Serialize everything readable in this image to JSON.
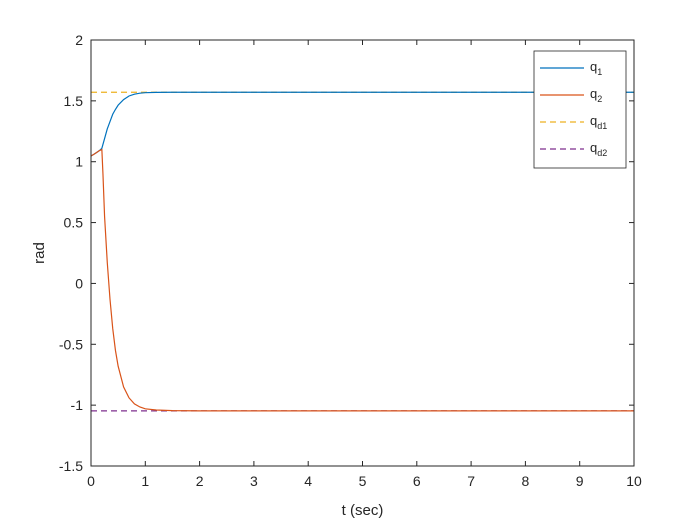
{
  "chart_data": {
    "type": "line",
    "title": "",
    "xlabel": "t (sec)",
    "ylabel": "rad",
    "xlim": [
      0,
      10
    ],
    "ylim": [
      -1.5,
      2
    ],
    "xticks": [
      0,
      1,
      2,
      3,
      4,
      5,
      6,
      7,
      8,
      9,
      10
    ],
    "yticks": [
      -1.5,
      -1,
      -0.5,
      0,
      0.5,
      1,
      1.5,
      2
    ],
    "xtick_labels": [
      "0",
      "1",
      "2",
      "3",
      "4",
      "5",
      "6",
      "7",
      "8",
      "9",
      "10"
    ],
    "ytick_labels": [
      "-1.5",
      "-1",
      "-0.5",
      "0",
      "0.5",
      "1",
      "1.5",
      "2"
    ],
    "grid": false,
    "legend_position": "top-right",
    "series": [
      {
        "label_main": "q",
        "label_sub": "1",
        "color": "#0072BD",
        "style": "solid",
        "x": [
          0,
          0.05,
          0.1,
          0.15,
          0.2,
          0.25,
          0.3,
          0.35,
          0.4,
          0.45,
          0.5,
          0.6,
          0.7,
          0.8,
          0.9,
          1.0,
          1.2,
          1.5,
          2.0,
          3.0,
          5.0,
          10.0
        ],
        "y": [
          1.047,
          1.06,
          1.075,
          1.09,
          1.11,
          1.19,
          1.27,
          1.33,
          1.39,
          1.43,
          1.465,
          1.51,
          1.54,
          1.555,
          1.563,
          1.567,
          1.57,
          1.571,
          1.571,
          1.571,
          1.571,
          1.571
        ]
      },
      {
        "label_main": "q",
        "label_sub": "2",
        "color": "#D95319",
        "style": "solid",
        "x": [
          0,
          0.05,
          0.1,
          0.15,
          0.2,
          0.22,
          0.25,
          0.3,
          0.35,
          0.4,
          0.45,
          0.5,
          0.6,
          0.7,
          0.8,
          0.9,
          1.0,
          1.2,
          1.5,
          2.0,
          3.0,
          5.0,
          10.0
        ],
        "y": [
          1.047,
          1.06,
          1.075,
          1.09,
          1.1,
          0.9,
          0.55,
          0.17,
          -0.13,
          -0.37,
          -0.55,
          -0.68,
          -0.85,
          -0.94,
          -0.99,
          -1.015,
          -1.03,
          -1.04,
          -1.045,
          -1.047,
          -1.047,
          -1.047,
          -1.047
        ]
      },
      {
        "label_main": "q",
        "label_sub": "d1",
        "color": "#EDB120",
        "style": "dashed",
        "x": [
          0,
          10
        ],
        "y": [
          1.571,
          1.571
        ]
      },
      {
        "label_main": "q",
        "label_sub": "d2",
        "color": "#7E2F8E",
        "style": "dashed",
        "x": [
          0,
          10
        ],
        "y": [
          -1.047,
          -1.047
        ]
      }
    ]
  }
}
